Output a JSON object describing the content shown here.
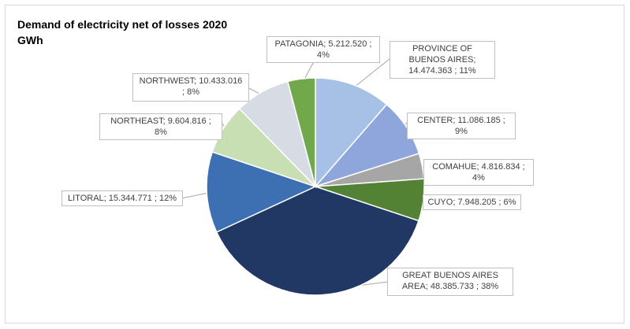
{
  "chart_data": {
    "type": "pie",
    "title": "Demand of electricity net of losses 2020",
    "subtitle": "GWh",
    "slices": [
      {
        "name": "PROVINCE OF BUENOS AIRES",
        "value": 14474.363,
        "percent": 11,
        "value_label": "14.474.363",
        "color": "#a6c0e6",
        "label": "PROVINCE OF BUENOS AIRES; 14.474.363 ; 11%"
      },
      {
        "name": "CENTER",
        "value": 11086.185,
        "percent": 9,
        "value_label": "11.086.185",
        "color": "#8ea6db",
        "label": "CENTER; 11.086.185 ; 9%"
      },
      {
        "name": "COMAHUE",
        "value": 4816.834,
        "percent": 4,
        "value_label": "4.816.834",
        "color": "#a6a6a6",
        "label": "COMAHUE; 4.816.834 ; 4%"
      },
      {
        "name": "CUYO",
        "value": 7948.205,
        "percent": 6,
        "value_label": "7.948.205",
        "color": "#548235",
        "label": "CUYO; 7.948.205 ; 6%"
      },
      {
        "name": "GREAT BUENOS AIRES AREA",
        "value": 48385.733,
        "percent": 38,
        "value_label": "48.385.733",
        "color": "#213864",
        "label": "GREAT BUENOS AIRES AREA; 48.385.733 ; 38%"
      },
      {
        "name": "LITORAL",
        "value": 15344.771,
        "percent": 12,
        "value_label": "15.344.771",
        "color": "#3c70b3",
        "label": "LITORAL; 15.344.771 ; 12%"
      },
      {
        "name": "NORTHEAST",
        "value": 9604.816,
        "percent": 8,
        "value_label": "9.604.816",
        "color": "#c8dfb4",
        "label": "NORTHEAST; 9.604.816 ; 8%"
      },
      {
        "name": "NORTHWEST",
        "value": 10433.016,
        "percent": 8,
        "value_label": "10.433.016",
        "color": "#d7dbe4",
        "label": "NORTHWEST; 10.433.016 ; 8%"
      },
      {
        "name": "PATAGONIA",
        "value": 5212.52,
        "percent": 4,
        "value_label": "5.212.520",
        "color": "#70a84b",
        "label": "PATAGONIA; 5.212.520 ; 4%"
      }
    ]
  }
}
